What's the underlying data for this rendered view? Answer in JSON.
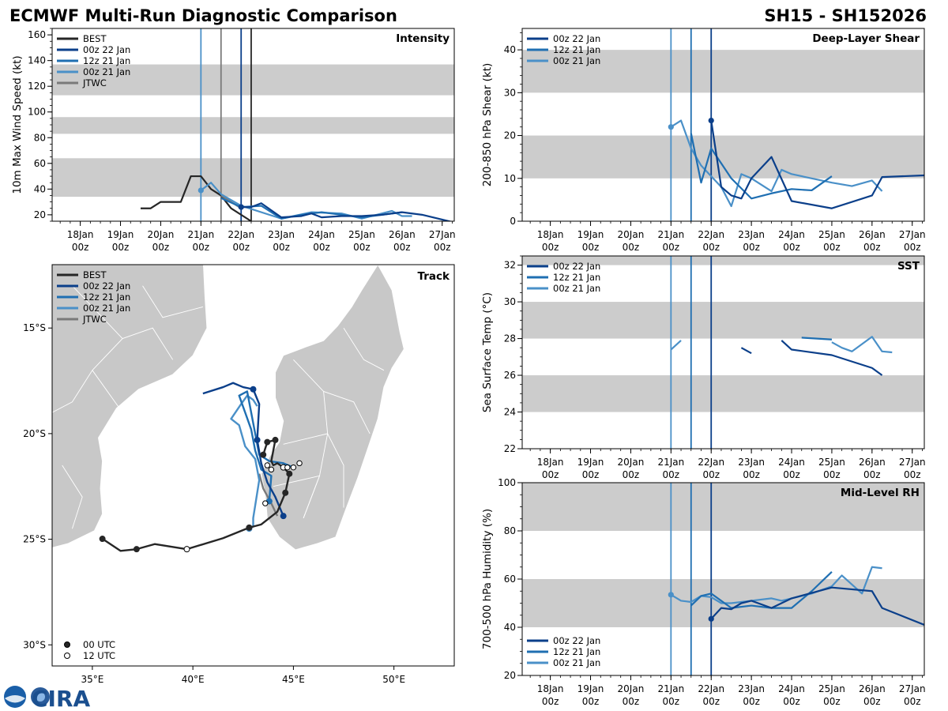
{
  "header": {
    "title": "ECMWF Multi-Run Diagnostic Comparison",
    "storm_id": "SH15 - SH152026"
  },
  "colors": {
    "BEST": "#262626",
    "00z 22 Jan": "#0b3f8a",
    "12z 21 Jan": "#1f6fb2",
    "00z 21 Jan": "#4a90c8",
    "JTWC": "#7a7a7a",
    "band": "#cccccc",
    "land": "#c8c8c8"
  },
  "logo": {
    "text": "CIRA"
  },
  "time_ticks": [
    "18Jan\n00z",
    "19Jan\n00z",
    "20Jan\n00z",
    "21Jan\n00z",
    "22Jan\n00z",
    "23Jan\n00z",
    "24Jan\n00z",
    "25Jan\n00z",
    "26Jan\n00z",
    "27Jan\n00z"
  ],
  "chart_data": [
    {
      "id": "intensity",
      "type": "line",
      "title": "Intensity",
      "ylabel": "10m Max Wind Speed (kt)",
      "x_range": [
        -3.7,
        6.3
      ],
      "ylim": [
        15,
        165
      ],
      "yticks": [
        20,
        40,
        60,
        80,
        100,
        120,
        140,
        160
      ],
      "bands": [
        [
          34,
          64
        ],
        [
          83,
          96
        ],
        [
          113,
          137
        ]
      ],
      "legend": [
        "BEST",
        "00z 22 Jan",
        "12z 21 Jan",
        "00z 21 Jan",
        "JTWC"
      ],
      "init_lines": [
        {
          "name": "00z 21 Jan",
          "x": 0
        },
        {
          "name": "JTWC",
          "x": 0.5
        },
        {
          "name": "00z 22 Jan",
          "x": 1.0
        },
        {
          "name": "BEST",
          "x": 1.25
        }
      ],
      "series": [
        {
          "name": "BEST",
          "x": [
            -1.5,
            -1.25,
            -1.0,
            -0.75,
            -0.5,
            -0.25,
            0,
            0.25,
            0.5,
            0.75,
            1.0,
            1.25
          ],
          "y": [
            25,
            25,
            30,
            30,
            30,
            50,
            50,
            40,
            35,
            25,
            20,
            15
          ]
        },
        {
          "name": "JTWC",
          "x": [
            0.5,
            0.75,
            1.0
          ],
          "y": [
            35,
            30,
            25
          ]
        },
        {
          "name": "00z 21 Jan",
          "x": [
            0,
            0.25,
            0.5,
            1.0,
            2.0,
            2.75,
            3.5,
            4.0,
            4.75,
            5.0,
            5.25
          ],
          "y": [
            39,
            45,
            36,
            27,
            17,
            22,
            21,
            17,
            23,
            19,
            19
          ],
          "marker_first": true
        },
        {
          "name": "12z 21 Jan",
          "x": [
            0.5,
            1.0,
            1.5,
            2.0,
            2.5,
            3.0,
            4.0,
            4.75,
            5.0
          ],
          "y": [
            33,
            26,
            27,
            17,
            20,
            22,
            18,
            21,
            22
          ]
        },
        {
          "name": "00z 22 Jan",
          "x": [
            1.0,
            1.25,
            1.5,
            2.0,
            2.5,
            2.75,
            3.0,
            3.5,
            4.0,
            4.5,
            5.0,
            5.5,
            6.3
          ],
          "y": [
            26,
            26,
            29,
            18,
            19,
            21,
            18,
            19,
            19,
            20,
            22,
            20,
            14
          ],
          "marker_first": true
        }
      ]
    },
    {
      "id": "shear",
      "type": "line",
      "title": "Deep-Layer Shear",
      "ylabel": "200-850 hPa Shear (kt)",
      "x_range": [
        -3.7,
        6.3
      ],
      "ylim": [
        0,
        45
      ],
      "yticks": [
        0,
        10,
        20,
        30,
        40
      ],
      "bands": [
        [
          10,
          20
        ],
        [
          30,
          40
        ]
      ],
      "legend": [
        "00z 22 Jan",
        "12z 21 Jan",
        "00z 21 Jan"
      ],
      "init_lines": [
        {
          "name": "00z 21 Jan",
          "x": 0
        },
        {
          "name": "12z 21 Jan",
          "x": 0.5
        },
        {
          "name": "00z 22 Jan",
          "x": 1.0
        }
      ],
      "series": [
        {
          "name": "00z 21 Jan",
          "x": [
            0,
            0.25,
            0.5,
            0.75,
            1.0,
            1.25,
            1.5,
            1.75,
            2.0,
            2.5,
            2.75,
            3.0,
            3.5,
            4.0,
            4.5,
            5.0,
            5.25
          ],
          "y": [
            22,
            23.5,
            17,
            13,
            10.5,
            8,
            3.5,
            11,
            10,
            7,
            12,
            11,
            10,
            9,
            8.2,
            9.5,
            7
          ],
          "marker_first": true
        },
        {
          "name": "12z 21 Jan",
          "x": [
            0.5,
            0.75,
            1.0,
            1.25,
            1.5,
            2.0,
            2.5,
            3.0,
            3.5,
            4.0
          ],
          "y": [
            20.5,
            9,
            17,
            13.5,
            10,
            5.3,
            6.5,
            7.5,
            7.2,
            10.5
          ]
        },
        {
          "name": "00z 22 Jan",
          "x": [
            1.0,
            1.25,
            1.5,
            1.75,
            2.0,
            2.5,
            3.0,
            4.0,
            5.0,
            5.25,
            6.3
          ],
          "y": [
            23.5,
            8,
            6,
            5.3,
            10,
            15,
            4.7,
            3,
            6,
            10.3,
            10.7
          ],
          "marker_first": true
        }
      ]
    },
    {
      "id": "sst",
      "type": "line",
      "title": "SST",
      "ylabel": "Sea Surface Temp (°C)",
      "x_range": [
        -3.7,
        6.3
      ],
      "ylim": [
        22,
        32.5
      ],
      "yticks": [
        22,
        24,
        26,
        28,
        30,
        32
      ],
      "bands": [
        [
          24,
          26
        ],
        [
          28,
          30
        ],
        [
          32,
          33
        ]
      ],
      "legend": [
        "00z 22 Jan",
        "12z 21 Jan",
        "00z 21 Jan"
      ],
      "init_lines": [
        {
          "name": "00z 21 Jan",
          "x": 0
        },
        {
          "name": "12z 21 Jan",
          "x": 0.5
        },
        {
          "name": "00z 22 Jan",
          "x": 1.0
        }
      ],
      "series": [
        {
          "name": "00z 21 Jan",
          "x": [
            0,
            0.25
          ],
          "y": [
            27.4,
            27.9
          ]
        },
        {
          "name": "00z 21 Jan",
          "x": [
            4.0,
            4.25,
            4.5,
            5.0,
            5.25,
            5.5
          ],
          "y": [
            27.8,
            27.5,
            27.3,
            28.1,
            27.3,
            27.25
          ]
        },
        {
          "name": "12z 21 Jan",
          "x": [
            3.25,
            4.0
          ],
          "y": [
            28.05,
            27.95
          ]
        },
        {
          "name": "00z 22 Jan",
          "x": [
            1.75,
            2.0
          ],
          "y": [
            27.5,
            27.2
          ]
        },
        {
          "name": "00z 22 Jan",
          "x": [
            2.75,
            3.0,
            4.0,
            5.0,
            5.25
          ],
          "y": [
            27.9,
            27.4,
            27.1,
            26.4,
            26.0
          ]
        }
      ]
    },
    {
      "id": "rh",
      "type": "line",
      "title": "Mid-Level RH",
      "ylabel": "700-500 hPa Humidity (%)",
      "x_range": [
        -3.7,
        6.3
      ],
      "ylim": [
        20,
        100
      ],
      "yticks": [
        20,
        40,
        60,
        80,
        100
      ],
      "bands": [
        [
          40,
          60
        ],
        [
          80,
          100
        ]
      ],
      "legend": [
        "00z 22 Jan",
        "12z 21 Jan",
        "00z 21 Jan"
      ],
      "init_lines": [
        {
          "name": "00z 21 Jan",
          "x": 0
        },
        {
          "name": "12z 21 Jan",
          "x": 0.5
        },
        {
          "name": "00z 22 Jan",
          "x": 1.0
        }
      ],
      "series": [
        {
          "name": "00z 21 Jan",
          "x": [
            0,
            0.25,
            0.5,
            0.75,
            1.0,
            1.25,
            1.5,
            1.75,
            2.0,
            2.5,
            2.75,
            3.0,
            3.5,
            4.0,
            4.25,
            4.75,
            5.0,
            5.25
          ],
          "y": [
            53.5,
            51,
            50.5,
            53,
            52.5,
            50,
            50,
            50.5,
            51,
            52,
            51,
            52,
            54,
            57,
            61.5,
            54,
            65,
            64.5
          ],
          "marker_first": true
        },
        {
          "name": "12z 21 Jan",
          "x": [
            0.5,
            0.75,
            1.0,
            1.5,
            2.0,
            2.5,
            3.0,
            3.5,
            4.0
          ],
          "y": [
            49,
            53,
            54,
            48,
            49,
            48,
            48,
            55,
            63
          ]
        },
        {
          "name": "00z 22 Jan",
          "x": [
            1.0,
            1.25,
            1.5,
            1.75,
            2.0,
            2.5,
            3.0,
            4.0,
            5.0,
            5.25,
            6.3
          ],
          "y": [
            43.5,
            48,
            47.5,
            50,
            51,
            48,
            52,
            56.5,
            55,
            48,
            41
          ],
          "marker_first": true
        }
      ]
    },
    {
      "id": "track",
      "type": "scatter",
      "title": "Track",
      "xlim": [
        33,
        53
      ],
      "ylim": [
        -31,
        -12
      ],
      "xticks": [
        {
          "v": 35,
          "label": "35°E"
        },
        {
          "v": 40,
          "label": "40°E"
        },
        {
          "v": 45,
          "label": "45°E"
        },
        {
          "v": 50,
          "label": "50°E"
        }
      ],
      "yticks": [
        {
          "v": -15,
          "label": "15°S"
        },
        {
          "v": -20,
          "label": "20°S"
        },
        {
          "v": -25,
          "label": "25°S"
        },
        {
          "v": -30,
          "label": "30°S"
        }
      ],
      "legend": [
        "BEST",
        "00z 22 Jan",
        "12z 21 Jan",
        "00z 21 Jan",
        "JTWC"
      ],
      "marker_legend": [
        "00 UTC",
        "12 UTC"
      ],
      "series": [
        {
          "name": "BEST",
          "lon": [
            35.5,
            36.4,
            37.2,
            38.1,
            39.7,
            41.5,
            42.8,
            43.4,
            44.2,
            44.6,
            44.8,
            44.5,
            44.2,
            44.0,
            43.9,
            44.1,
            43.7,
            43.5
          ],
          "lat": [
            -24.98,
            -25.55,
            -25.47,
            -25.23,
            -25.47,
            -24.95,
            -24.45,
            -24.3,
            -23.7,
            -22.8,
            -21.9,
            -21.6,
            -21.4,
            -21.5,
            -21.3,
            -20.3,
            -20.4,
            -21.0
          ],
          "open": [
            false,
            false,
            false,
            false,
            true,
            false,
            false,
            false,
            false,
            false,
            false,
            true,
            false,
            false,
            false,
            false,
            false,
            false
          ],
          "markers": [
            0,
            2,
            4,
            6,
            9,
            10,
            11,
            15,
            16,
            17
          ]
        },
        {
          "name": "JTWC",
          "lon": [
            44.2,
            43.9,
            43.5,
            43.3
          ],
          "lat": [
            -23.9,
            -23.3,
            -22.6,
            -21.9
          ]
        },
        {
          "name": "00z 21 Jan",
          "lon": [
            42.8,
            43.0,
            43.0,
            43.3,
            43.1,
            42.6,
            42.3,
            41.9,
            42.4,
            42.7,
            43.0,
            43.2
          ],
          "lat": [
            -24.5,
            -24.4,
            -24.0,
            -22.2,
            -21.2,
            -20.6,
            -19.6,
            -19.3,
            -18.6,
            -18.2,
            -18.4,
            -18.7
          ],
          "markers": [
            0
          ]
        },
        {
          "name": "12z 21 Jan",
          "lon": [
            43.8,
            43.9,
            43.4,
            43.1,
            42.9,
            42.6,
            42.3,
            42.7,
            43.3,
            43.8,
            44.5,
            45.0
          ],
          "lat": [
            -23.2,
            -22.0,
            -21.7,
            -20.8,
            -19.8,
            -19.0,
            -18.2,
            -18.0,
            -21.0,
            -21.3,
            -21.4,
            -21.6
          ],
          "markers": [
            0
          ]
        },
        {
          "name": "00z 22 Jan",
          "lon": [
            44.5,
            44.1,
            43.7,
            43.4,
            43.2,
            43.3,
            43.0,
            42.5,
            42.0,
            41.5,
            40.5
          ],
          "lat": [
            -23.9,
            -23.0,
            -22.3,
            -21.4,
            -20.3,
            -18.6,
            -17.9,
            -17.8,
            -17.6,
            -17.8,
            -18.1
          ],
          "markers": [
            0,
            4,
            6
          ]
        },
        {
          "name": "open_points",
          "lon": [
            43.7,
            43.9,
            44.7,
            45.0,
            45.3,
            43.6
          ],
          "lat": [
            -21.5,
            -21.7,
            -21.6,
            -21.6,
            -21.4,
            -23.3
          ]
        }
      ]
    }
  ]
}
